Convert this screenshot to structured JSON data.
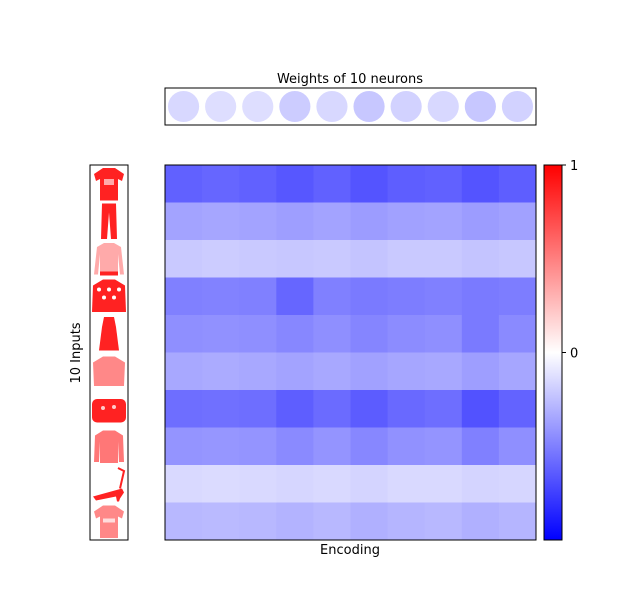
{
  "chart_data": {
    "type": "heatmap",
    "title": "Weights of 10 neurons",
    "xlabel": "Encoding",
    "ylabel": "10 Inputs",
    "colormap": {
      "low": "#0000ff",
      "mid": "#ffffff",
      "high": "#ff0000"
    },
    "colorbar": {
      "vmin": -1.0,
      "vmax": 1,
      "ticks": [
        {
          "value": 1,
          "label": "1"
        },
        {
          "value": 0,
          "label": "0"
        }
      ]
    },
    "grid": false,
    "input_images": [
      "tshirt-icon",
      "trousers-icon",
      "pullover-icon",
      "patterned-sweater-icon",
      "dress-icon",
      "blouse-icon",
      "bag-icon",
      "shirt-icon",
      "sandal-icon",
      "printed-tshirt-icon"
    ],
    "weights_strip": [
      -0.07,
      -0.06,
      -0.06,
      -0.09,
      -0.07,
      -0.1,
      -0.08,
      -0.07,
      -0.1,
      -0.08
    ],
    "matrix": [
      [
        -0.62,
        -0.6,
        -0.62,
        -0.66,
        -0.62,
        -0.67,
        -0.63,
        -0.62,
        -0.67,
        -0.63
      ],
      [
        -0.36,
        -0.35,
        -0.36,
        -0.38,
        -0.36,
        -0.39,
        -0.37,
        -0.36,
        -0.39,
        -0.37
      ],
      [
        -0.21,
        -0.2,
        -0.21,
        -0.22,
        -0.21,
        -0.23,
        -0.21,
        -0.21,
        -0.23,
        -0.22
      ],
      [
        -0.5,
        -0.49,
        -0.5,
        -0.6,
        -0.5,
        -0.52,
        -0.51,
        -0.5,
        -0.52,
        -0.51
      ],
      [
        -0.44,
        -0.43,
        -0.44,
        -0.47,
        -0.44,
        -0.48,
        -0.45,
        -0.44,
        -0.52,
        -0.46
      ],
      [
        -0.34,
        -0.33,
        -0.34,
        -0.36,
        -0.34,
        -0.37,
        -0.35,
        -0.34,
        -0.38,
        -0.35
      ],
      [
        -0.57,
        -0.56,
        -0.57,
        -0.63,
        -0.58,
        -0.64,
        -0.59,
        -0.57,
        -0.68,
        -0.61
      ],
      [
        -0.42,
        -0.41,
        -0.42,
        -0.46,
        -0.42,
        -0.47,
        -0.43,
        -0.42,
        -0.5,
        -0.44
      ],
      [
        -0.15,
        -0.14,
        -0.15,
        -0.16,
        -0.15,
        -0.17,
        -0.15,
        -0.15,
        -0.17,
        -0.16
      ],
      [
        -0.28,
        -0.27,
        -0.28,
        -0.3,
        -0.28,
        -0.31,
        -0.29,
        -0.28,
        -0.31,
        -0.29
      ]
    ]
  }
}
